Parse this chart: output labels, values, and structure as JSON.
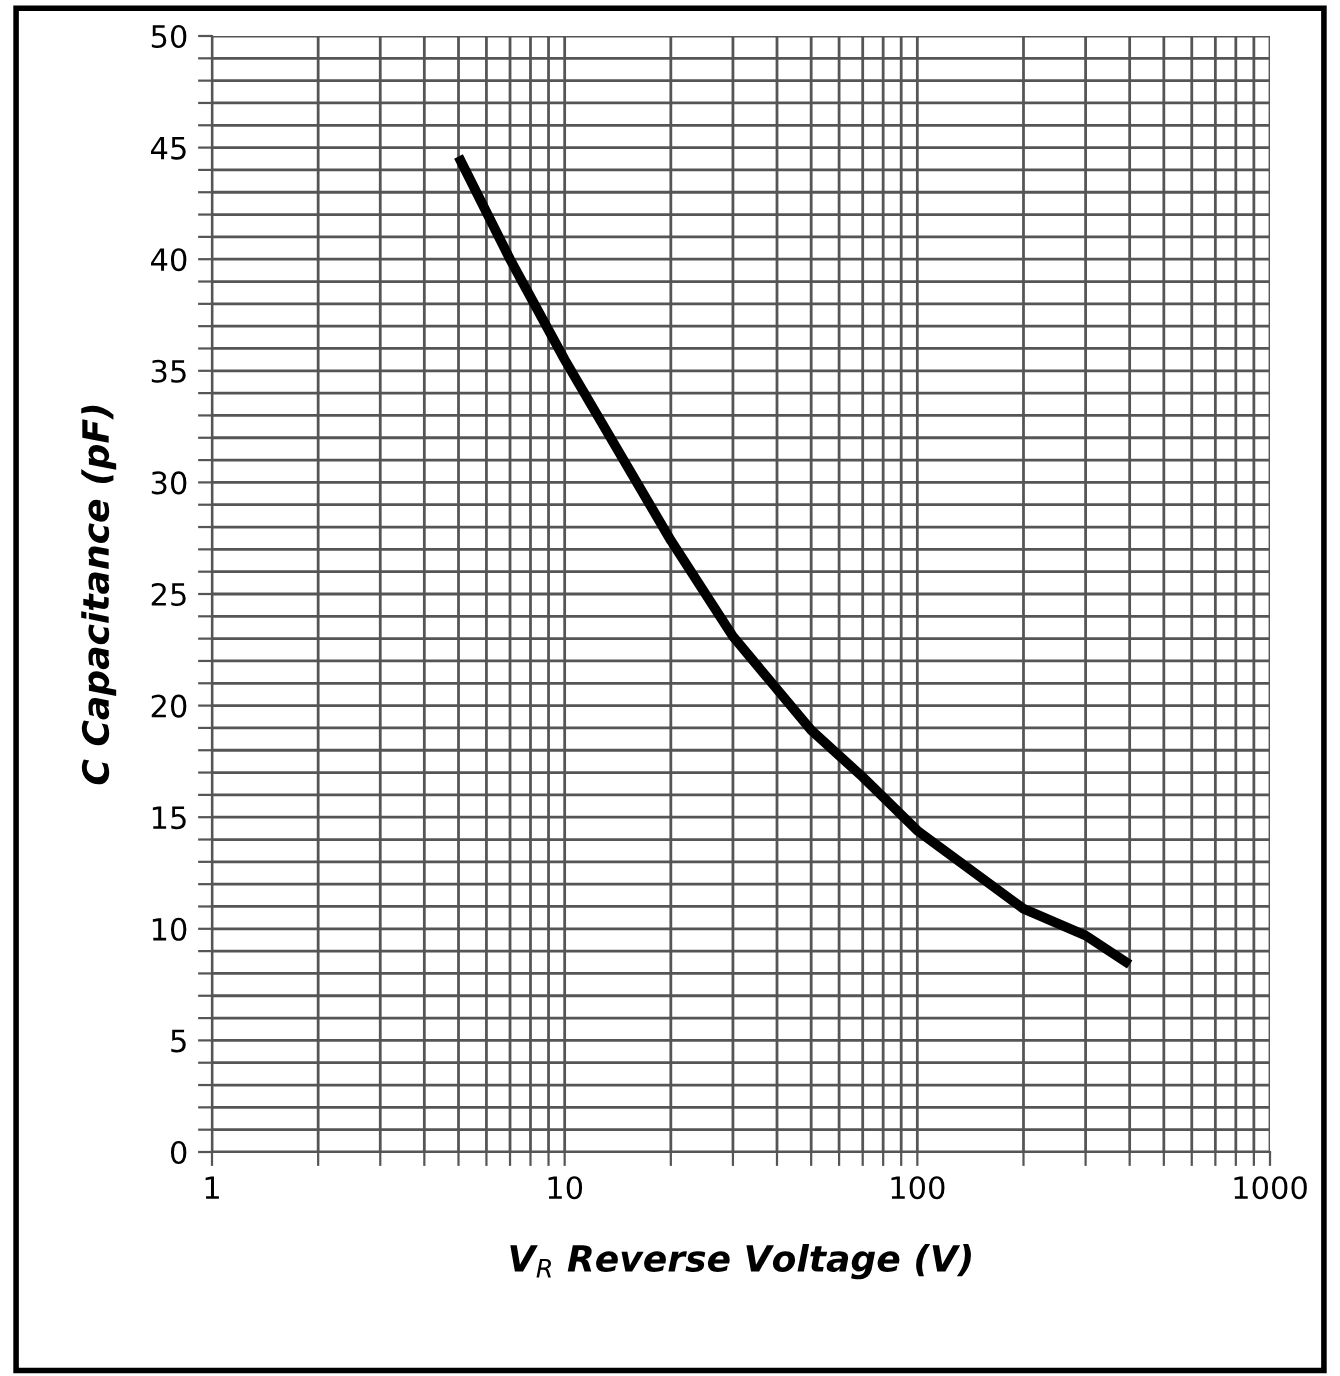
{
  "chart_data": {
    "type": "line",
    "xlabel": "V$_{R}$ Reverse Voltage (V)",
    "ylabel": "C Capacitance (pF)",
    "log": "x",
    "xlim": [
      1,
      1000
    ],
    "ylim": [
      0,
      50
    ],
    "xticks": [
      1,
      {
        "value": 2,
        "label": null
      },
      {
        "value": 3,
        "label": null
      },
      {
        "value": 4,
        "label": null
      },
      {
        "value": 5,
        "label": null
      },
      {
        "value": 6,
        "label": null
      },
      {
        "value": 7,
        "label": null
      },
      {
        "value": 8,
        "label": null
      },
      {
        "value": 9,
        "label": null
      },
      10,
      {
        "value": 20,
        "label": null
      },
      {
        "value": 30,
        "label": null
      },
      {
        "value": 40,
        "label": null
      },
      {
        "value": 50,
        "label": null
      },
      {
        "value": 60,
        "label": null
      },
      {
        "value": 70,
        "label": null
      },
      {
        "value": 80,
        "label": null
      },
      {
        "value": 90,
        "label": null
      },
      100,
      {
        "value": 200,
        "label": null
      },
      {
        "value": 300,
        "label": null
      },
      {
        "value": 400,
        "label": null
      },
      {
        "value": 500,
        "label": null
      },
      {
        "value": 600,
        "label": null
      },
      {
        "value": 700,
        "label": null
      },
      {
        "value": 800,
        "label": null
      },
      {
        "value": 900,
        "label": null
      },
      1000
    ],
    "yticks": [
      0,
      {
        "value": 1,
        "label": null
      },
      {
        "value": 2,
        "label": null
      },
      {
        "value": 3,
        "label": null
      },
      {
        "value": 4,
        "label": null
      },
      5,
      {
        "value": 6,
        "label": null
      },
      {
        "value": 7,
        "label": null
      },
      {
        "value": 8,
        "label": null
      },
      {
        "value": 9,
        "label": null
      },
      10,
      {
        "value": 11,
        "label": null
      },
      {
        "value": 12,
        "label": null
      },
      {
        "value": 13,
        "label": null
      },
      {
        "value": 14,
        "label": null
      },
      15,
      {
        "value": 16,
        "label": null
      },
      {
        "value": 17,
        "label": null
      },
      {
        "value": 18,
        "label": null
      },
      {
        "value": 19,
        "label": null
      },
      20,
      {
        "value": 21,
        "label": null
      },
      {
        "value": 22,
        "label": null
      },
      {
        "value": 23,
        "label": null
      },
      {
        "value": 24,
        "label": null
      },
      25,
      {
        "value": 26,
        "label": null
      },
      {
        "value": 27,
        "label": null
      },
      {
        "value": 28,
        "label": null
      },
      {
        "value": 29,
        "label": null
      },
      30,
      {
        "value": 31,
        "label": null
      },
      {
        "value": 32,
        "label": null
      },
      {
        "value": 33,
        "label": null
      },
      {
        "value": 34,
        "label": null
      },
      35,
      {
        "value": 36,
        "label": null
      },
      {
        "value": 37,
        "label": null
      },
      {
        "value": 38,
        "label": null
      },
      {
        "value": 39,
        "label": null
      },
      40,
      {
        "value": 41,
        "label": null
      },
      {
        "value": 42,
        "label": null
      },
      {
        "value": 43,
        "label": null
      },
      {
        "value": 44,
        "label": null
      },
      45,
      {
        "value": 46,
        "label": null
      },
      {
        "value": 47,
        "label": null
      },
      {
        "value": 48,
        "label": null
      },
      {
        "value": 49,
        "label": null
      },
      50
    ],
    "grid": true,
    "marker": "none",
    "line_style": "solid",
    "series": [
      {
        "color": "#000000",
        "x": [
          5,
          7,
          10,
          20,
          30,
          50,
          70,
          100,
          200,
          300,
          400
        ],
        "values": [
          44.6,
          40.0,
          35.5,
          27.4,
          23.1,
          18.9,
          16.8,
          14.4,
          10.9,
          9.7,
          8.4
        ]
      }
    ]
  }
}
